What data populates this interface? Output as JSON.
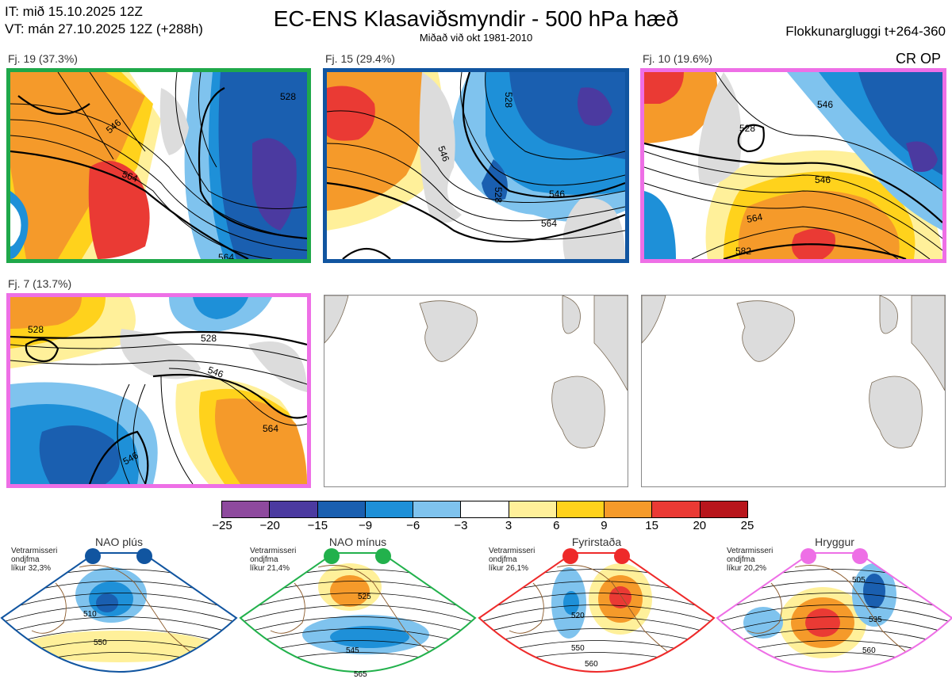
{
  "header": {
    "it_line": "IT: mið 15.10.2025 12Z",
    "vt_line": "VT: mán 27.10.2025 12Z  (+288h)",
    "title": "EC-ENS Klasaviðsmyndir - 500 hPa hæð",
    "subtitle": "Miðað við okt 1981-2010",
    "window": "Flokkunargluggi t+264-360",
    "cr_op": "CR OP"
  },
  "clusters": [
    {
      "label": "Fj. 19 (37.3%)",
      "border_color": "#1fa84a",
      "contours": [
        "564",
        "546",
        "528",
        "564"
      ]
    },
    {
      "label": "Fj. 15 (29.4%)",
      "border_color": "#1155a0",
      "contours": [
        "546",
        "528",
        "546",
        "564",
        "528"
      ]
    },
    {
      "label": "Fj. 10 (19.6%)",
      "border_color": "#ee6fe6",
      "contours": [
        "528",
        "546",
        "564",
        "582",
        "546"
      ]
    },
    {
      "label": "Fj. 7 (13.7%)",
      "border_color": "#ee6fe6",
      "contours": [
        "528",
        "528",
        "546",
        "564",
        "546"
      ]
    }
  ],
  "colorbar": {
    "labels": [
      "−25",
      "−20",
      "−15",
      "−9",
      "−6",
      "−3",
      "3",
      "6",
      "9",
      "15",
      "20",
      "25"
    ],
    "colors": [
      "#8e4a9e",
      "#4b3aa0",
      "#1a5fb0",
      "#1e90d8",
      "#7fc3ee",
      "#ffffff",
      "#fff09a",
      "#ffd21c",
      "#f59a2a",
      "#ea3a34",
      "#b8161c"
    ]
  },
  "regimes": [
    {
      "title": "NAO plús",
      "text": [
        "Vetrarmisseri",
        "ondjfma",
        "líkur 32,3%"
      ],
      "color": "#1155a0",
      "contours": [
        "510",
        "550"
      ]
    },
    {
      "title": "NAO mínus",
      "text": [
        "Vetrarmisseri",
        "ondjfma",
        "líkur 21,4%"
      ],
      "color": "#22b14c",
      "contours": [
        "525",
        "545",
        "565"
      ]
    },
    {
      "title": "Fyrirstaða",
      "text": [
        "Vetrarmisseri",
        "ondjfma",
        "líkur 26,1%"
      ],
      "color": "#ee2a2a",
      "contours": [
        "520",
        "550",
        "560"
      ]
    },
    {
      "title": "Hryggur",
      "text": [
        "Vetrarmisseri",
        "ondjfma",
        "líkur 20,2%"
      ],
      "color": "#ee6fe6",
      "contours": [
        "505",
        "535",
        "560"
      ]
    }
  ]
}
